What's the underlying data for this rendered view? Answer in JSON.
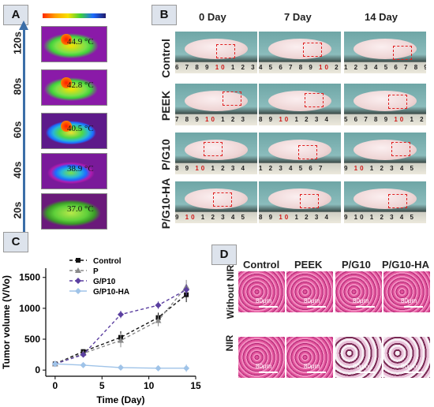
{
  "panels": {
    "a": "A",
    "b": "B",
    "c": "C",
    "d": "D"
  },
  "panel_a": {
    "time_labels": [
      "120s",
      "80s",
      "60s",
      "40s",
      "20s"
    ],
    "temperatures": [
      "44.9 °C",
      "42.8 °C",
      "40.5 °C",
      "38.9 °C",
      "37.0 °C"
    ],
    "colors": {
      "hot": "#ff2a00",
      "warm": "#f8e000",
      "mid": "#3fd13a",
      "cool": "#1d6bff",
      "cold": "#8a1aa8"
    }
  },
  "panel_b": {
    "columns": [
      "0 Day",
      "7 Day",
      "14 Day"
    ],
    "rows": [
      "Control",
      "PEEK",
      "P/G10",
      "P/G10-HA"
    ],
    "rulers": [
      [
        "6 7 8 9 ",
        "10",
        " 1 2 3 4",
        "4 5 6 7 8 9 ",
        "10",
        " 2",
        "1 2 3 4 5 6 7 8 9"
      ],
      [
        "7 8 9 ",
        "10",
        " 1 2 3",
        "8 9 ",
        "10",
        " 1 2 3 4",
        "5 6 7 8 9 ",
        "10",
        " 1 2 3"
      ],
      [
        "8 9 ",
        "10",
        " 1 2 3 4",
        "1 2 3 4 5 6 7",
        "9 ",
        "10",
        " 1 2 3 4 5"
      ],
      [
        "9 ",
        "10",
        " 1 2 3 4 5",
        "8 9 ",
        "10",
        " 1 2 3 4",
        "9 10 1 2 3 4 5"
      ]
    ]
  },
  "panel_c": {
    "legend": [
      "Control",
      "P",
      "G/P10",
      "G/P10-HA"
    ]
  },
  "panel_d": {
    "columns": [
      "Control",
      "PEEK",
      "P/G10",
      "P/G10-HA"
    ],
    "rows": [
      "Without NIR",
      "NIR"
    ],
    "scale": "80μm"
  },
  "chart_data": {
    "type": "line",
    "xlabel": "Time (Day)",
    "ylabel": "Tumor volume (V/Vo)",
    "xlim": [
      -1,
      15
    ],
    "ylim": [
      -100,
      1650
    ],
    "xticks": [
      0,
      5,
      10,
      15
    ],
    "yticks": [
      0,
      500,
      1000,
      1500
    ],
    "grid": false,
    "legend_position": "top-left",
    "series": [
      {
        "name": "Control",
        "color": "#111111",
        "marker": "square",
        "dashed": true,
        "x": [
          0,
          3,
          7,
          11,
          14
        ],
        "y": [
          100,
          300,
          530,
          850,
          1220
        ],
        "err": [
          10,
          30,
          100,
          80,
          120
        ]
      },
      {
        "name": "P",
        "color": "#8a8a8a",
        "marker": "triangle",
        "dashed": true,
        "x": [
          0,
          3,
          7,
          11,
          14
        ],
        "y": [
          100,
          270,
          480,
          800,
          1350
        ],
        "err": [
          10,
          40,
          110,
          90,
          110
        ]
      },
      {
        "name": "G/P10",
        "color": "#5b3fa0",
        "marker": "diamond",
        "dashed": true,
        "x": [
          0,
          3,
          7,
          11,
          14
        ],
        "y": [
          100,
          250,
          900,
          1050,
          1300
        ],
        "err": [
          10,
          30,
          60,
          60,
          90
        ]
      },
      {
        "name": "G/P10-HA",
        "color": "#9fc3e8",
        "marker": "diamond",
        "dashed": false,
        "x": [
          0,
          3,
          7,
          11,
          14
        ],
        "y": [
          100,
          80,
          40,
          30,
          30
        ],
        "err": [
          15,
          20,
          40,
          30,
          60
        ]
      }
    ]
  }
}
